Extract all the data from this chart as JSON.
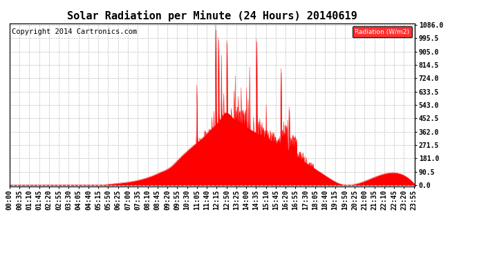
{
  "title": "Solar Radiation per Minute (24 Hours) 20140619",
  "copyright": "Copyright 2014 Cartronics.com",
  "legend_label": "Radiation (W/m2)",
  "yticks": [
    0.0,
    90.5,
    181.0,
    271.5,
    362.0,
    452.5,
    543.0,
    633.5,
    724.0,
    814.5,
    905.0,
    995.5,
    1086.0
  ],
  "ymax": 1086.0,
  "ymin": 0.0,
  "fill_color": "#ff0000",
  "line_color": "#ff0000",
  "bg_color": "#ffffff",
  "grid_color": "#bbbbbb",
  "title_fontsize": 11,
  "tick_fontsize": 7,
  "copyright_fontsize": 7.5
}
